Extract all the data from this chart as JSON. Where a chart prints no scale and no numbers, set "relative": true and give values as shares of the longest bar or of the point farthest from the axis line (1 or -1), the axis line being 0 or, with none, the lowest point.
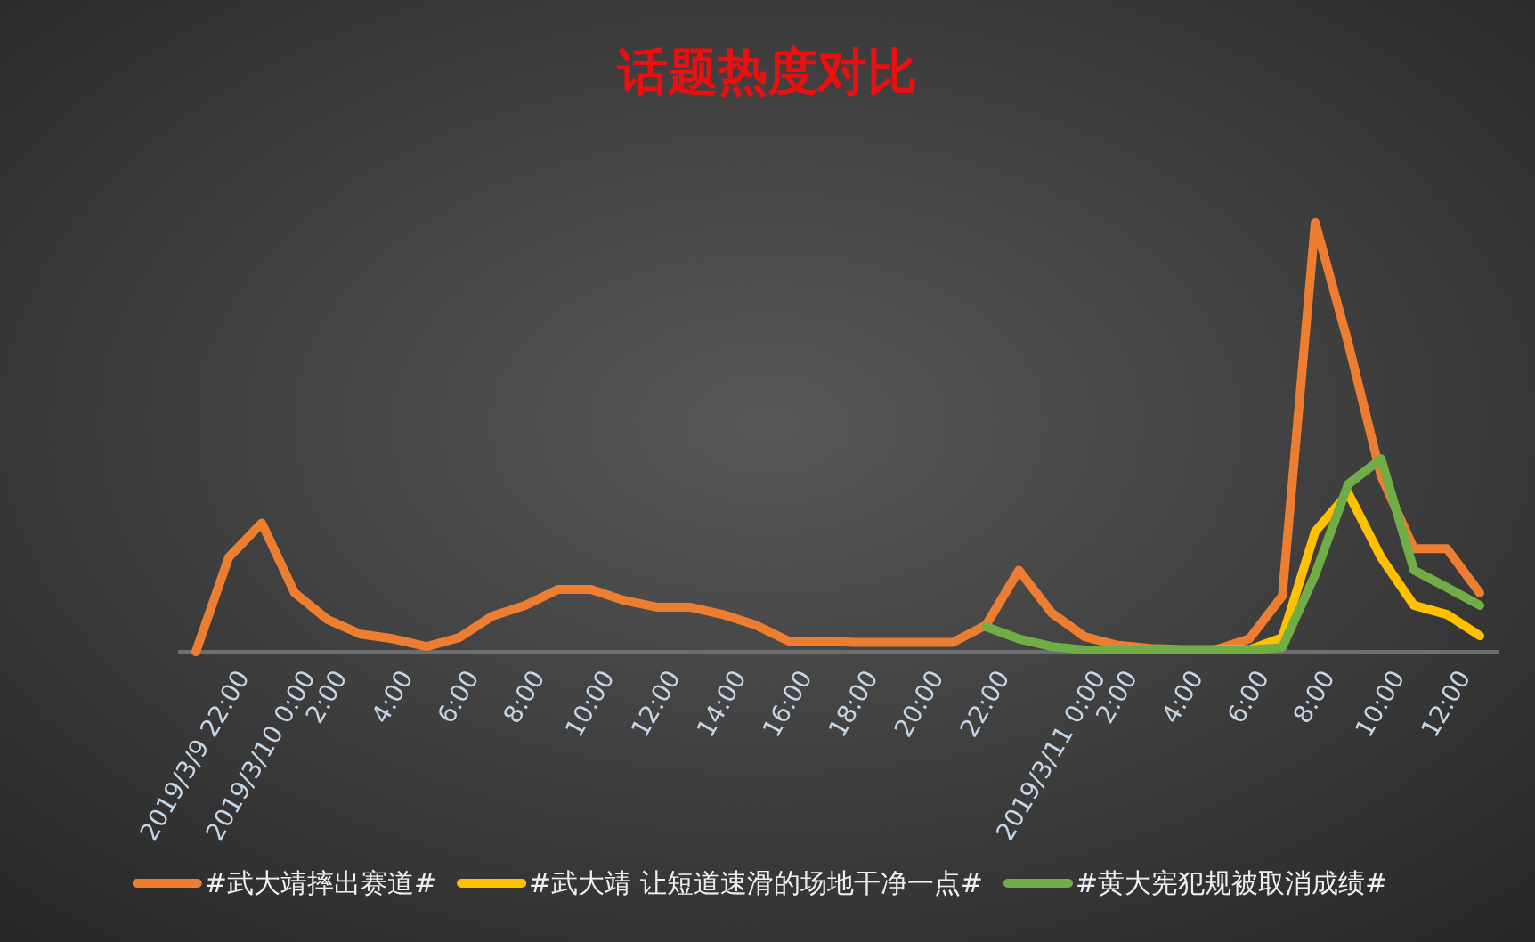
{
  "chart_data": {
    "type": "line",
    "title": "话题热度对比",
    "relative": true,
    "legend": "bottom",
    "categories": [
      "2019/3/9 22:00",
      null,
      "2019/3/10 0:00",
      null,
      "2:00",
      null,
      "4:00",
      null,
      "6:00",
      null,
      "8:00",
      null,
      "10:00",
      null,
      "12:00",
      null,
      "14:00",
      null,
      "16:00",
      null,
      "18:00",
      null,
      "20:00",
      null,
      "22:00",
      null,
      "2019/3/11 0:00",
      null,
      "2:00",
      null,
      "4:00",
      null,
      "6:00",
      null,
      "8:00",
      null,
      "10:00",
      null,
      "12:00",
      null
    ],
    "series": [
      {
        "name": "#武大靖摔出赛道#",
        "color": "#ed7d31",
        "values": [
          0,
          0.22,
          0.3,
          0.137,
          0.075,
          0.041,
          0.03,
          0.012,
          0.033,
          0.083,
          0.108,
          0.145,
          0.145,
          0.12,
          0.104,
          0.104,
          0.087,
          0.062,
          0.025,
          0.025,
          0.022,
          0.022,
          0.022,
          0.022,
          0.062,
          0.19,
          0.09,
          0.035,
          0.015,
          0.008,
          0.005,
          0.005,
          0.03,
          0.13,
          1,
          0.72,
          0.41,
          0.24,
          0.24,
          0.137
        ]
      },
      {
        "name": "#武大靖 让短道速滑的场地干净一点#",
        "color": "#ffc000",
        "values": [
          null,
          null,
          null,
          null,
          null,
          null,
          null,
          null,
          null,
          null,
          null,
          null,
          null,
          null,
          null,
          null,
          null,
          null,
          null,
          null,
          null,
          null,
          null,
          null,
          null,
          null,
          null,
          null,
          null,
          null,
          null,
          0.005,
          0.005,
          0.033,
          0.28,
          0.37,
          0.22,
          0.108,
          0.087,
          0.037
        ]
      },
      {
        "name": "#黄大宪犯规被取消成绩#",
        "color": "#70ad47",
        "values": [
          null,
          null,
          null,
          null,
          null,
          null,
          null,
          null,
          null,
          null,
          null,
          null,
          null,
          null,
          null,
          null,
          null,
          null,
          null,
          null,
          null,
          null,
          null,
          null,
          0.058,
          0.03,
          0.012,
          0.004,
          0.004,
          0.004,
          0.004,
          0.004,
          0.004,
          0.01,
          0.18,
          0.39,
          0.45,
          0.19,
          0.15,
          0.108
        ]
      }
    ]
  }
}
